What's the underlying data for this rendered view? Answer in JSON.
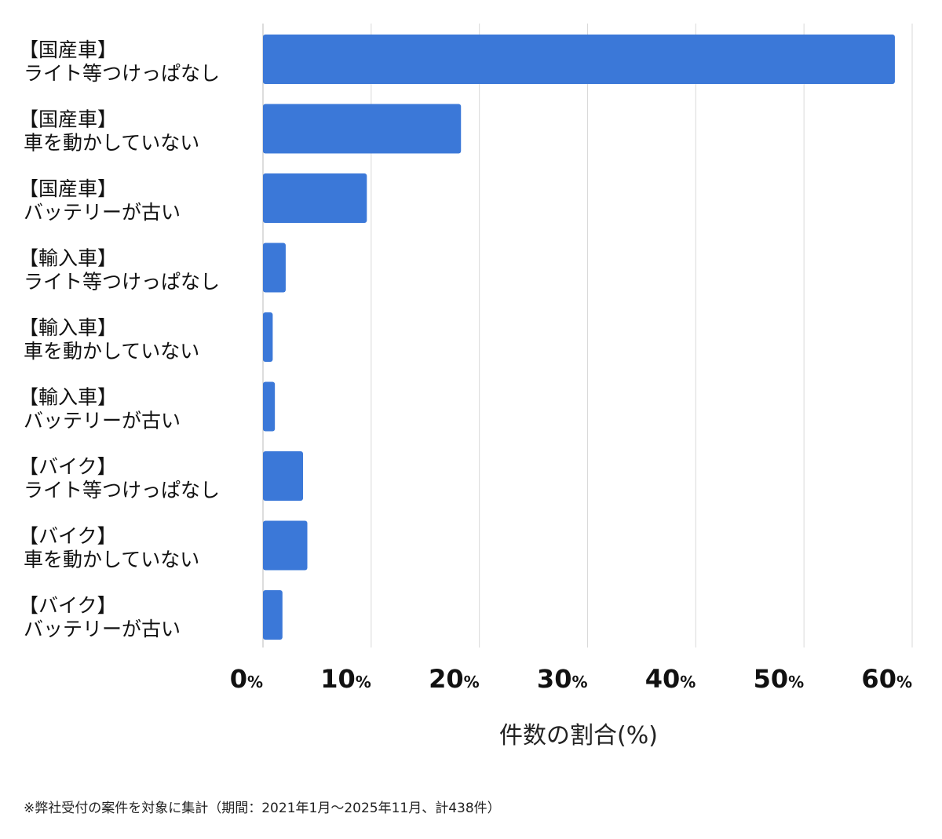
{
  "chart_data": {
    "type": "bar",
    "orientation": "horizontal",
    "categories": [
      [
        "【国産車】",
        "ライト等つけっぱなし"
      ],
      [
        "【国産車】",
        "車を動かしていない"
      ],
      [
        "【国産車】",
        "バッテリーが古い"
      ],
      [
        "【輸入車】",
        "ライト等つけっぱなし"
      ],
      [
        "【輸入車】",
        "車を動かしていない"
      ],
      [
        "【輸入車】",
        "バッテリーが古い"
      ],
      [
        "【バイク】",
        "ライト等つけっぱなし"
      ],
      [
        "【バイク】",
        "車を動かしていない"
      ],
      [
        "【バイク】",
        "バッテリーが古い"
      ]
    ],
    "values": [
      58.4,
      18.3,
      9.6,
      2.1,
      0.9,
      1.1,
      3.7,
      4.1,
      1.8
    ],
    "xlim": [
      0,
      60
    ],
    "ticks": [
      "0",
      "10",
      "20",
      "30",
      "40",
      "50",
      "60"
    ],
    "tick_unit": "%",
    "xlabel": "件数の割合(%)",
    "grid": true,
    "bar_color": "#3b78d8",
    "grid_color": "#d9d9d9"
  },
  "footnote": "※弊社受付の案件を対象に集計（期間：2021年1月〜2025年11月、計438件）"
}
